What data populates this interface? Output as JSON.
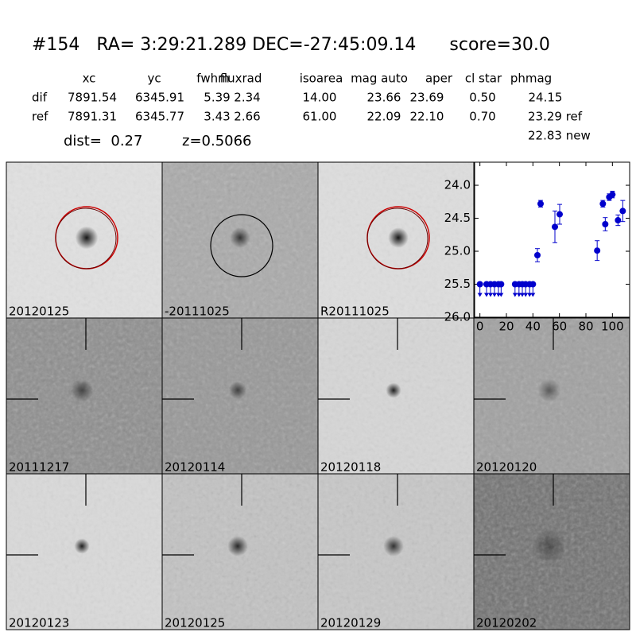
{
  "header": {
    "title": "#154   RA= 3:29:21.289 DEC=-27:45:09.14      score=30.0",
    "dist": "dist=  0.27",
    "z": "z=0.5066"
  },
  "table": {
    "columns": [
      "xc",
      "yc",
      "fwhm",
      "fluxrad",
      "isoarea",
      "mag auto",
      "aper",
      "cl star",
      "phmag"
    ],
    "rows": [
      [
        "dif",
        "7891.54",
        "6345.91",
        "5.39",
        "2.34",
        "14.00",
        "23.66",
        "23.69",
        "0.50",
        "24.15"
      ],
      [
        "ref",
        "7891.31",
        "6345.77",
        "3.43",
        "2.66",
        "61.00",
        "22.09",
        "22.10",
        "0.70",
        "23.29 ref"
      ]
    ],
    "extra": "22.83 new"
  },
  "panels": [
    {
      "label": "20120125"
    },
    {
      "label": "-20111025"
    },
    {
      "label": "R20111025"
    },
    {
      "label": "20111217"
    },
    {
      "label": "20120114"
    },
    {
      "label": "20120118"
    },
    {
      "label": "20120120"
    },
    {
      "label": "20120123"
    },
    {
      "label": "20120125",
      "color": "#ff0000"
    },
    {
      "label": "20120129"
    },
    {
      "label": "20120202"
    }
  ],
  "chart_data": {
    "type": "scatter",
    "xlim": [
      -4,
      113
    ],
    "xticks": [
      0,
      20,
      40,
      60,
      80,
      100
    ],
    "ylim": [
      26.0,
      23.65
    ],
    "yticks": [
      {
        "value": 24.0,
        "label": "24.0"
      },
      {
        "value": 24.5,
        "label": "24.5"
      },
      {
        "value": 25.0,
        "label": "25.0"
      },
      {
        "value": 25.5,
        "label": "25.5"
      },
      {
        "value": 26.0,
        "label": "26.0"
      }
    ],
    "series": [
      {
        "color": "#0000cc",
        "x": [
          43.4,
          45.8,
          56.6,
          60.2,
          88.5,
          92.8,
          94.6,
          97.6,
          100,
          104.2,
          107.8
        ],
        "values": [
          25.06,
          24.28,
          24.63,
          24.44,
          24.99,
          24.28,
          24.59,
          24.18,
          24.14,
          24.53,
          24.39
        ],
        "errors": [
          0.1,
          0.05,
          0.24,
          0.15,
          0.15,
          0.05,
          0.1,
          0.05,
          0.05,
          0.08,
          0.16
        ]
      },
      {
        "color": "#0000cc",
        "upper_limit": true,
        "x": [
          0,
          5,
          8,
          11,
          14,
          16,
          26.5,
          29.5,
          32,
          34.5,
          37.5,
          40
        ],
        "values": [
          25.5,
          25.5,
          25.5,
          25.5,
          25.5,
          25.5,
          25.5,
          25.5,
          25.5,
          25.5,
          25.5,
          25.5
        ]
      }
    ]
  }
}
